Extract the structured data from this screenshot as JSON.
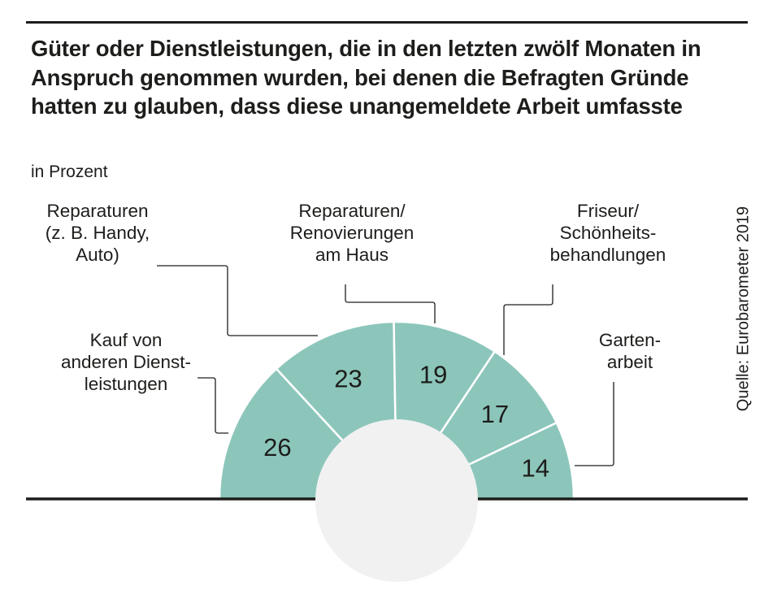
{
  "chart_data": {
    "type": "pie",
    "variant": "semi-donut",
    "title": "Güter oder Dienstleistungen, die in den letzten zwölf Monaten in Anspruch genommen wurden, bei denen die Befragten Gründe hatten zu glauben, dass diese unangemeldete Arbeit umfasste",
    "subtitle": "in Prozent",
    "source": "Quelle: Eurobarometer 2019",
    "slices": [
      {
        "label": "Kauf von\nanderen Dienst-\nleistungen",
        "value": 26
      },
      {
        "label": "Reparaturen\n(z. B. Handy,\nAuto)",
        "value": 23
      },
      {
        "label": "Reparaturen/\nRenovierungen\nam Haus",
        "value": 19
      },
      {
        "label": "Friseur/\nSchönheits-\nbehandlungen",
        "value": 17
      },
      {
        "label": "Garten-\narbeit",
        "value": 14
      }
    ],
    "colors": {
      "slice": "#8cc6bb",
      "center": "#f1f1f1",
      "text": "#1d1d1b"
    }
  }
}
